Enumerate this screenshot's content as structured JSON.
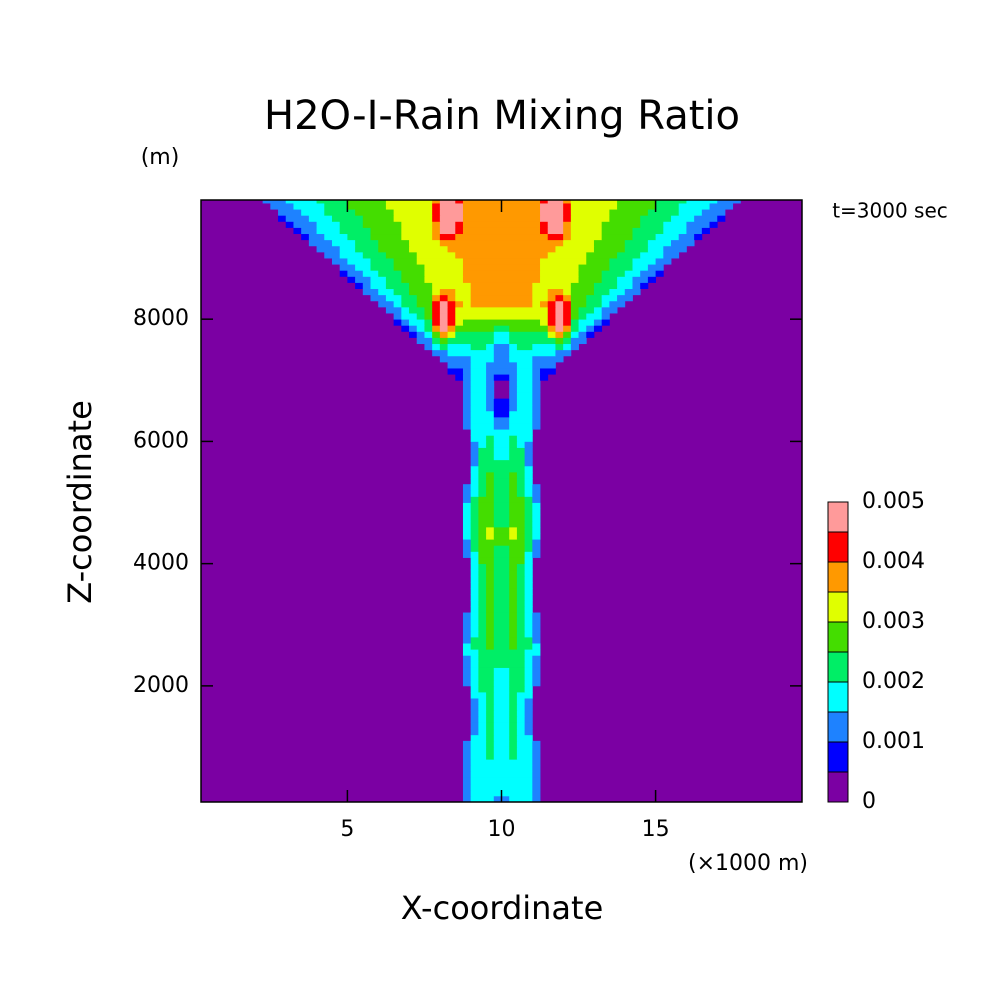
{
  "chart_data": {
    "type": "contour",
    "title": "H2O-I-Rain Mixing Ratio",
    "x_label": "X-coordinate",
    "y_label": "Z-coordinate",
    "x_unit": "(×1000 m)",
    "y_unit": "(m)",
    "annotation": "t=3000 sec",
    "xlim": [
      0.25,
      19.75
    ],
    "xticks": [
      5,
      10,
      15
    ],
    "ylim": [
      100,
      9950
    ],
    "yticks": [
      2000,
      4000,
      6000,
      8000
    ],
    "colorbar": {
      "levels": [
        0,
        0.0005,
        0.001,
        0.0015,
        0.002,
        0.0025,
        0.003,
        0.0035,
        0.004,
        0.0045,
        0.005
      ],
      "colors": [
        "#7b00a3",
        "#0000ff",
        "#1e82ff",
        "#00ffff",
        "#00ee66",
        "#44dd00",
        "#e0ff00",
        "#ff9900",
        "#ff0000",
        "#ff9a9a"
      ],
      "ticks": [
        0,
        0.001,
        0.002,
        0.003,
        0.004,
        0.005
      ]
    }
  }
}
